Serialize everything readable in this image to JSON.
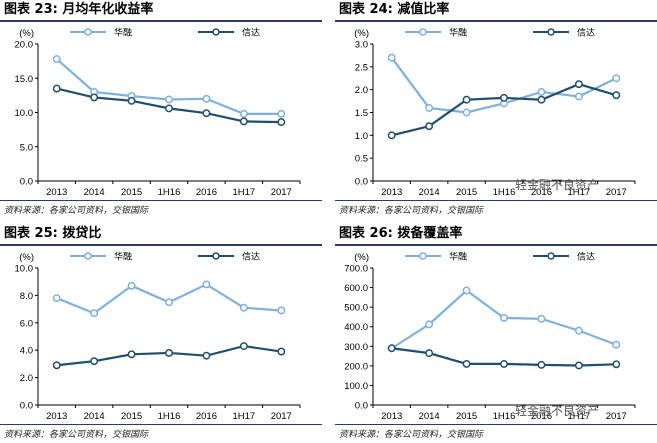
{
  "panels": [
    {
      "title": "图表 23: 月均年化收益率",
      "source": "资料来源：各家公司资料，交银国际"
    },
    {
      "title": "图表 24: 减值比率",
      "source": "资料来源：各家公司资料，交银国际"
    },
    {
      "title": "图表 25: 拨贷比",
      "source": "资料来源：各家公司资料，交银国际"
    },
    {
      "title": "图表 26: 拨备覆盖率",
      "source": "资料来源：各家公司资料，交银国际"
    }
  ],
  "watermark": {
    "text": "轻金融不良资产"
  },
  "colors": {
    "huarong": "#7fb0dc",
    "xinda": "#1f4e6f"
  },
  "chart_data": [
    {
      "type": "line",
      "title": "图表 23: 月均年化收益率",
      "categories": [
        "2013",
        "2014",
        "2015",
        "1H16",
        "2016",
        "1H17",
        "2017"
      ],
      "unit": "(%)",
      "ylim": [
        0,
        20
      ],
      "yticks": [
        "0.0",
        "5.0",
        "10.0",
        "15.0",
        "20.0"
      ],
      "ytick_values": [
        0,
        5,
        10,
        15,
        20
      ],
      "legend_position": "top",
      "series": [
        {
          "name": "华融",
          "values": [
            17.8,
            13.0,
            12.4,
            11.9,
            12.0,
            9.8,
            9.8
          ]
        },
        {
          "name": "信达",
          "values": [
            13.5,
            12.2,
            11.7,
            10.6,
            9.9,
            8.7,
            8.6
          ]
        }
      ]
    },
    {
      "type": "line",
      "title": "图表 24: 减值比率",
      "categories": [
        "2013",
        "2014",
        "2015",
        "1H16",
        "2016",
        "1H17",
        "2017"
      ],
      "unit": "(%)",
      "ylim": [
        0,
        3
      ],
      "yticks": [
        "0.0",
        "0.5",
        "1.0",
        "1.5",
        "2.0",
        "2.5",
        "3.0"
      ],
      "ytick_values": [
        0,
        0.5,
        1,
        1.5,
        2,
        2.5,
        3
      ],
      "legend_position": "top",
      "series": [
        {
          "name": "华融",
          "values": [
            2.7,
            1.6,
            1.5,
            1.7,
            1.95,
            1.85,
            2.25
          ]
        },
        {
          "name": "信达",
          "values": [
            1.0,
            1.2,
            1.78,
            1.82,
            1.78,
            2.12,
            1.88
          ]
        }
      ]
    },
    {
      "type": "line",
      "title": "图表 25: 拨贷比",
      "categories": [
        "2013",
        "2014",
        "2015",
        "1H16",
        "2016",
        "1H17",
        "2017"
      ],
      "unit": "(%)",
      "ylim": [
        0,
        10
      ],
      "yticks": [
        "0.0",
        "2.0",
        "4.0",
        "6.0",
        "8.0",
        "10.0"
      ],
      "ytick_values": [
        0,
        2,
        4,
        6,
        8,
        10
      ],
      "legend_position": "top",
      "series": [
        {
          "name": "华融",
          "values": [
            7.8,
            6.7,
            8.7,
            7.5,
            8.8,
            7.1,
            6.9
          ]
        },
        {
          "name": "信达",
          "values": [
            2.9,
            3.2,
            3.7,
            3.8,
            3.6,
            4.3,
            3.9
          ]
        }
      ]
    },
    {
      "type": "line",
      "title": "图表 26: 拨备覆盖率",
      "categories": [
        "2013",
        "2014",
        "2015",
        "1H16",
        "2016",
        "1H17",
        "2017"
      ],
      "unit": "(%)",
      "ylim": [
        0,
        700
      ],
      "yticks": [
        "0.0",
        "100.0",
        "200.0",
        "300.0",
        "400.0",
        "500.0",
        "600.0",
        "700.0"
      ],
      "ytick_values": [
        0,
        100,
        200,
        300,
        400,
        500,
        600,
        700
      ],
      "legend_position": "top",
      "series": [
        {
          "name": "华融",
          "values": [
            290,
            412,
            585,
            445,
            440,
            380,
            308
          ]
        },
        {
          "name": "信达",
          "values": [
            290,
            265,
            210,
            210,
            205,
            202,
            208
          ]
        }
      ]
    }
  ]
}
